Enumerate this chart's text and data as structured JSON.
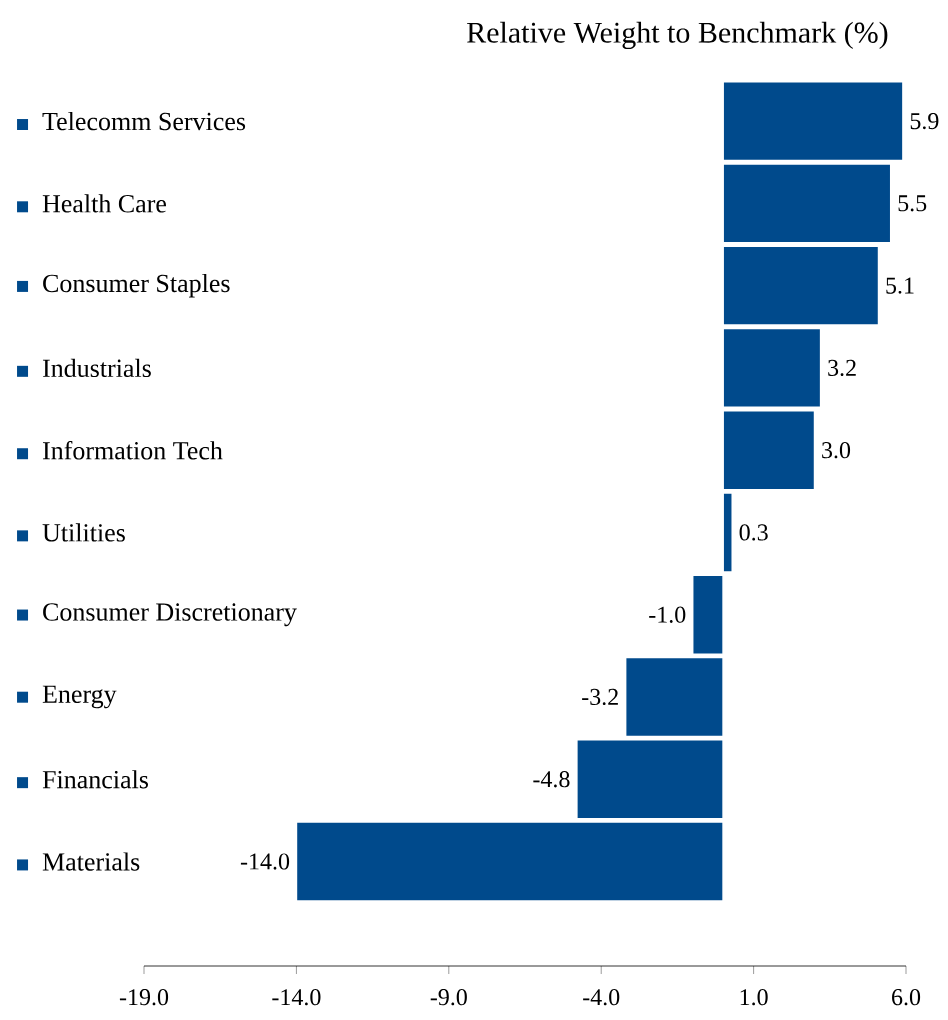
{
  "chart_data": {
    "type": "bar",
    "orientation": "horizontal",
    "title": "Relative Weight to Benchmark (%)",
    "categories": [
      "Telecomm Services",
      "Health Care",
      "Consumer Staples",
      "Industrials",
      "Information Tech",
      "Utilities",
      "Consumer Discretionary",
      "Energy",
      "Financials",
      "Materials"
    ],
    "values": [
      5.9,
      5.5,
      5.1,
      3.2,
      3.0,
      0.3,
      -1.0,
      -3.2,
      -4.8,
      -14.0
    ],
    "value_labels": [
      "5.9",
      "5.5",
      "5.1",
      "3.2",
      "3.0",
      "0.3",
      "-1.0",
      "-3.2",
      "-4.8",
      "-14.0"
    ],
    "color": "#004a8c",
    "xlim": [
      -19,
      6
    ],
    "xticks": [
      {
        "value": -19,
        "label": "-19.0"
      },
      {
        "value": -14,
        "label": "-14.0"
      },
      {
        "value": -9,
        "label": "-9.0"
      },
      {
        "value": -4,
        "label": "-4.0"
      },
      {
        "value": 1,
        "label": "1.0"
      },
      {
        "value": 6,
        "label": "6.0"
      }
    ],
    "grid": false
  }
}
